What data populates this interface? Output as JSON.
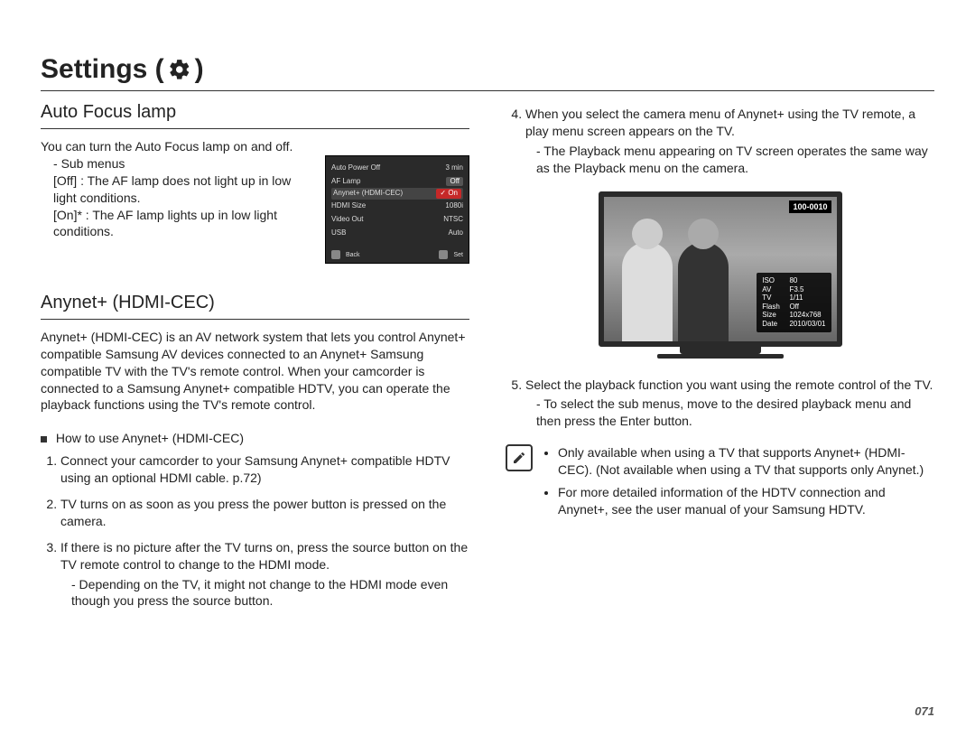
{
  "page_title": "Settings (",
  "page_title_close": ")",
  "left": {
    "section1_title": "Auto Focus lamp",
    "intro": "You can turn the Auto Focus lamp on and off.",
    "submenus_label": "Sub menus",
    "off_line": "[Off]  : The AF lamp does not light up in low light conditions.",
    "on_line": "[On]* : The AF lamp lights up in low light conditions.",
    "menu_shot": {
      "rows": [
        {
          "label": "Auto Power Off",
          "value": "3 min"
        },
        {
          "label": "AF Lamp",
          "value": "Off",
          "box": true
        },
        {
          "label": "Anynet+ (HDMI-CEC)",
          "value": "On",
          "highlight": true,
          "red": true
        },
        {
          "label": "HDMI Size",
          "value": "1080i"
        },
        {
          "label": "Video Out",
          "value": "NTSC"
        },
        {
          "label": "USB",
          "value": "Auto"
        }
      ],
      "footer_left": "Back",
      "footer_right": "Set",
      "footer_left_badge": "MENU",
      "footer_right_badge": "OK"
    },
    "section2_title": "Anynet+ (HDMI-CEC)",
    "anynet_para": "Anynet+ (HDMI-CEC) is an AV network system that lets you control Anynet+ compatible Samsung AV devices connected to an Anynet+ Samsung compatible TV with the TV's remote control. When your camcorder is connected to a Samsung Anynet+ compatible HDTV, you can operate the playback functions using the TV's remote control.",
    "howto_heading": "How to use Anynet+ (HDMI-CEC)",
    "steps": {
      "1": "Connect your camcorder to your Samsung Anynet+ compatible HDTV using an optional HDMI cable. p.72)",
      "2": "TV turns on as soon as you press the power button is pressed on the camera.",
      "3": "If there is no picture after the TV turns on, press the source button on the TV remote control to change to the HDMI mode.",
      "3_sub": "- Depending on the TV, it might not change to the HDMI mode even though you press the source button."
    }
  },
  "right": {
    "step4": "When you select the camera menu of Anynet+ using the TV remote, a play menu screen appears on the TV.",
    "step4_sub": "- The Playback menu appearing on TV screen operates the same way as the Playback menu on the camera.",
    "tv_info": {
      "top_label": "100-0010",
      "lines": [
        {
          "lab": "ISO",
          "val": "80"
        },
        {
          "lab": "AV",
          "val": "F3.5"
        },
        {
          "lab": "TV",
          "val": "1/11"
        },
        {
          "lab": "Flash",
          "val": "Off"
        },
        {
          "lab": "Size",
          "val": "1024x768"
        },
        {
          "lab": "Date",
          "val": "2010/03/01"
        }
      ]
    },
    "step5": "Select the playback function you want using the remote control of the TV.",
    "step5_sub": "- To select the sub menus, move to the desired playback menu and then press the Enter button.",
    "notes": {
      "1": "Only available when using a TV that supports Anynet+ (HDMI-CEC). (Not available when using a TV that supports only Anynet.)",
      "2": "For more detailed information of the HDTV connection and Anynet+, see the user manual of your Samsung HDTV."
    }
  },
  "page_number": "071"
}
